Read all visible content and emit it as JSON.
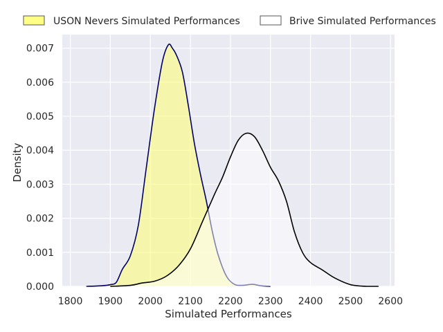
{
  "chart_data": {
    "type": "area",
    "title": "",
    "xlabel": "Simulated Performances",
    "ylabel": "Density",
    "xlim": [
      1780,
      2610
    ],
    "ylim": [
      0,
      0.0074
    ],
    "x_ticks": [
      1800,
      1900,
      2000,
      2100,
      2200,
      2300,
      2400,
      2500,
      2600
    ],
    "y_ticks": [
      0.0,
      0.001,
      0.002,
      0.003,
      0.004,
      0.005,
      0.006,
      0.007
    ],
    "x_tick_labels": [
      "1800",
      "1900",
      "2000",
      "2100",
      "2200",
      "2300",
      "2400",
      "2500",
      "2600"
    ],
    "y_tick_labels": [
      "0.000",
      "0.001",
      "0.002",
      "0.003",
      "0.004",
      "0.005",
      "0.006",
      "0.007"
    ],
    "grid": true,
    "legend_position": "top",
    "background_color": "#eaeaf2",
    "series": [
      {
        "name": "USON Nevers Simulated Performances",
        "fill_color": "#ffff66",
        "fill_opacity": 0.5,
        "line_color": "#000066",
        "points": [
          [
            1840,
            0.0
          ],
          [
            1880,
            2e-05
          ],
          [
            1900,
            5e-05
          ],
          [
            1915,
            0.00012
          ],
          [
            1930,
            0.0005
          ],
          [
            1950,
            0.0009
          ],
          [
            1970,
            0.0018
          ],
          [
            1990,
            0.0035
          ],
          [
            2010,
            0.0052
          ],
          [
            2030,
            0.0066
          ],
          [
            2045,
            0.0071
          ],
          [
            2055,
            0.007
          ],
          [
            2065,
            0.0068
          ],
          [
            2080,
            0.0063
          ],
          [
            2095,
            0.0053
          ],
          [
            2110,
            0.0042
          ],
          [
            2125,
            0.0033
          ],
          [
            2140,
            0.0025
          ],
          [
            2155,
            0.0016
          ],
          [
            2170,
            0.0009
          ],
          [
            2190,
            0.0003
          ],
          [
            2210,
            6e-05
          ],
          [
            2230,
            3e-05
          ],
          [
            2255,
            6e-05
          ],
          [
            2275,
            2e-05
          ],
          [
            2300,
            0.0
          ]
        ]
      },
      {
        "name": "Brive Simulated Performances",
        "fill_color": "#ffffff",
        "fill_opacity": 0.5,
        "line_color": "#000000",
        "points": [
          [
            1900,
            0.0
          ],
          [
            1950,
            3e-05
          ],
          [
            1980,
            0.0001
          ],
          [
            2010,
            0.00015
          ],
          [
            2040,
            0.0003
          ],
          [
            2070,
            0.0006
          ],
          [
            2100,
            0.0011
          ],
          [
            2130,
            0.0019
          ],
          [
            2160,
            0.0027
          ],
          [
            2180,
            0.0032
          ],
          [
            2200,
            0.0038
          ],
          [
            2220,
            0.0043
          ],
          [
            2240,
            0.0045
          ],
          [
            2260,
            0.0044
          ],
          [
            2280,
            0.004
          ],
          [
            2300,
            0.0035
          ],
          [
            2320,
            0.0031
          ],
          [
            2340,
            0.0025
          ],
          [
            2360,
            0.0016
          ],
          [
            2380,
            0.001
          ],
          [
            2400,
            0.0007
          ],
          [
            2430,
            0.00048
          ],
          [
            2460,
            0.00025
          ],
          [
            2500,
            5e-05
          ],
          [
            2540,
            0.0
          ],
          [
            2570,
            0.0
          ]
        ]
      }
    ]
  }
}
